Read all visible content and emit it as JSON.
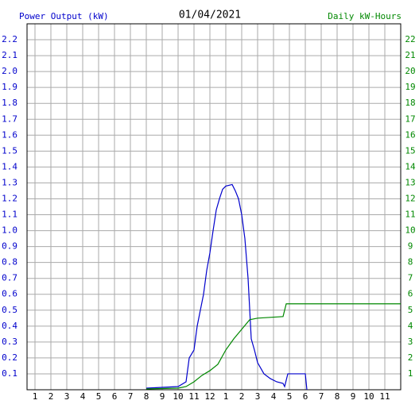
{
  "chart_data": {
    "type": "line",
    "title": "01/04/2021",
    "y_label": "Power Output (kW)",
    "y2_label": "Daily kW-Hours",
    "xlim": [
      0.5,
      24
    ],
    "xticks": [
      1,
      2,
      3,
      4,
      5,
      6,
      7,
      8,
      9,
      10,
      11,
      {
        "value": 12,
        "label": "12"
      },
      {
        "value": 13,
        "label": "1"
      },
      {
        "value": 14,
        "label": "2"
      },
      {
        "value": 15,
        "label": "3"
      },
      {
        "value": 16,
        "label": "4"
      },
      {
        "value": 17,
        "label": "5"
      },
      {
        "value": 18,
        "label": "6"
      },
      {
        "value": 19,
        "label": "7"
      },
      {
        "value": 20,
        "label": "8"
      },
      {
        "value": 21,
        "label": "9"
      },
      {
        "value": 22,
        "label": "10"
      },
      {
        "value": 23,
        "label": "11"
      }
    ],
    "ylim": [
      0,
      2.3
    ],
    "yticks": [
      0.1,
      0.2,
      0.3,
      0.4,
      0.5,
      0.6,
      0.7,
      0.8,
      0.9,
      {
        "value": 1,
        "label": "1.0"
      },
      1.1,
      1.2,
      1.3,
      1.4,
      1.5,
      1.6,
      1.7,
      1.8,
      1.9,
      {
        "value": 2,
        "label": "2.0"
      },
      2.1,
      2.2
    ],
    "y2lim": [
      0,
      23
    ],
    "y2ticks": [
      1,
      2,
      3,
      4,
      5,
      6,
      7,
      8,
      9,
      10,
      11,
      12,
      13,
      14,
      15,
      16,
      17,
      18,
      19,
      20,
      21,
      22
    ],
    "grid": true,
    "series": [
      {
        "name": "Power Output (kW)",
        "color": "#0000cc",
        "x": [
          8,
          10,
          10.5,
          10.7,
          11,
          11.2,
          11.4,
          11.6,
          11.8,
          12,
          12.2,
          12.4,
          12.6,
          12.8,
          13,
          13.4,
          13.6,
          13.8,
          14,
          14.2,
          14.4,
          14.6,
          14.8,
          15,
          15.4,
          15.8,
          16.2,
          16.6,
          16.7,
          16.9,
          18,
          18.1
        ],
        "values": [
          0.01,
          0.02,
          0.05,
          0.2,
          0.25,
          0.4,
          0.5,
          0.6,
          0.75,
          0.86,
          1.0,
          1.13,
          1.2,
          1.26,
          1.28,
          1.29,
          1.25,
          1.2,
          1.1,
          0.95,
          0.7,
          0.32,
          0.25,
          0.17,
          0.1,
          0.07,
          0.05,
          0.04,
          0.02,
          0.1,
          0.1,
          0
        ]
      },
      {
        "name": "Daily kW-Hours",
        "color": "#008800",
        "axis": "y2",
        "x": [
          8,
          10,
          10.5,
          11,
          11.5,
          12,
          12.5,
          13,
          13.5,
          14,
          14.5,
          15,
          16.6,
          16.8,
          24
        ],
        "values": [
          0.05,
          0.1,
          0.2,
          0.5,
          0.9,
          1.2,
          1.6,
          2.5,
          3.2,
          3.8,
          4.4,
          4.5,
          4.6,
          5.4,
          5.4
        ]
      }
    ]
  }
}
